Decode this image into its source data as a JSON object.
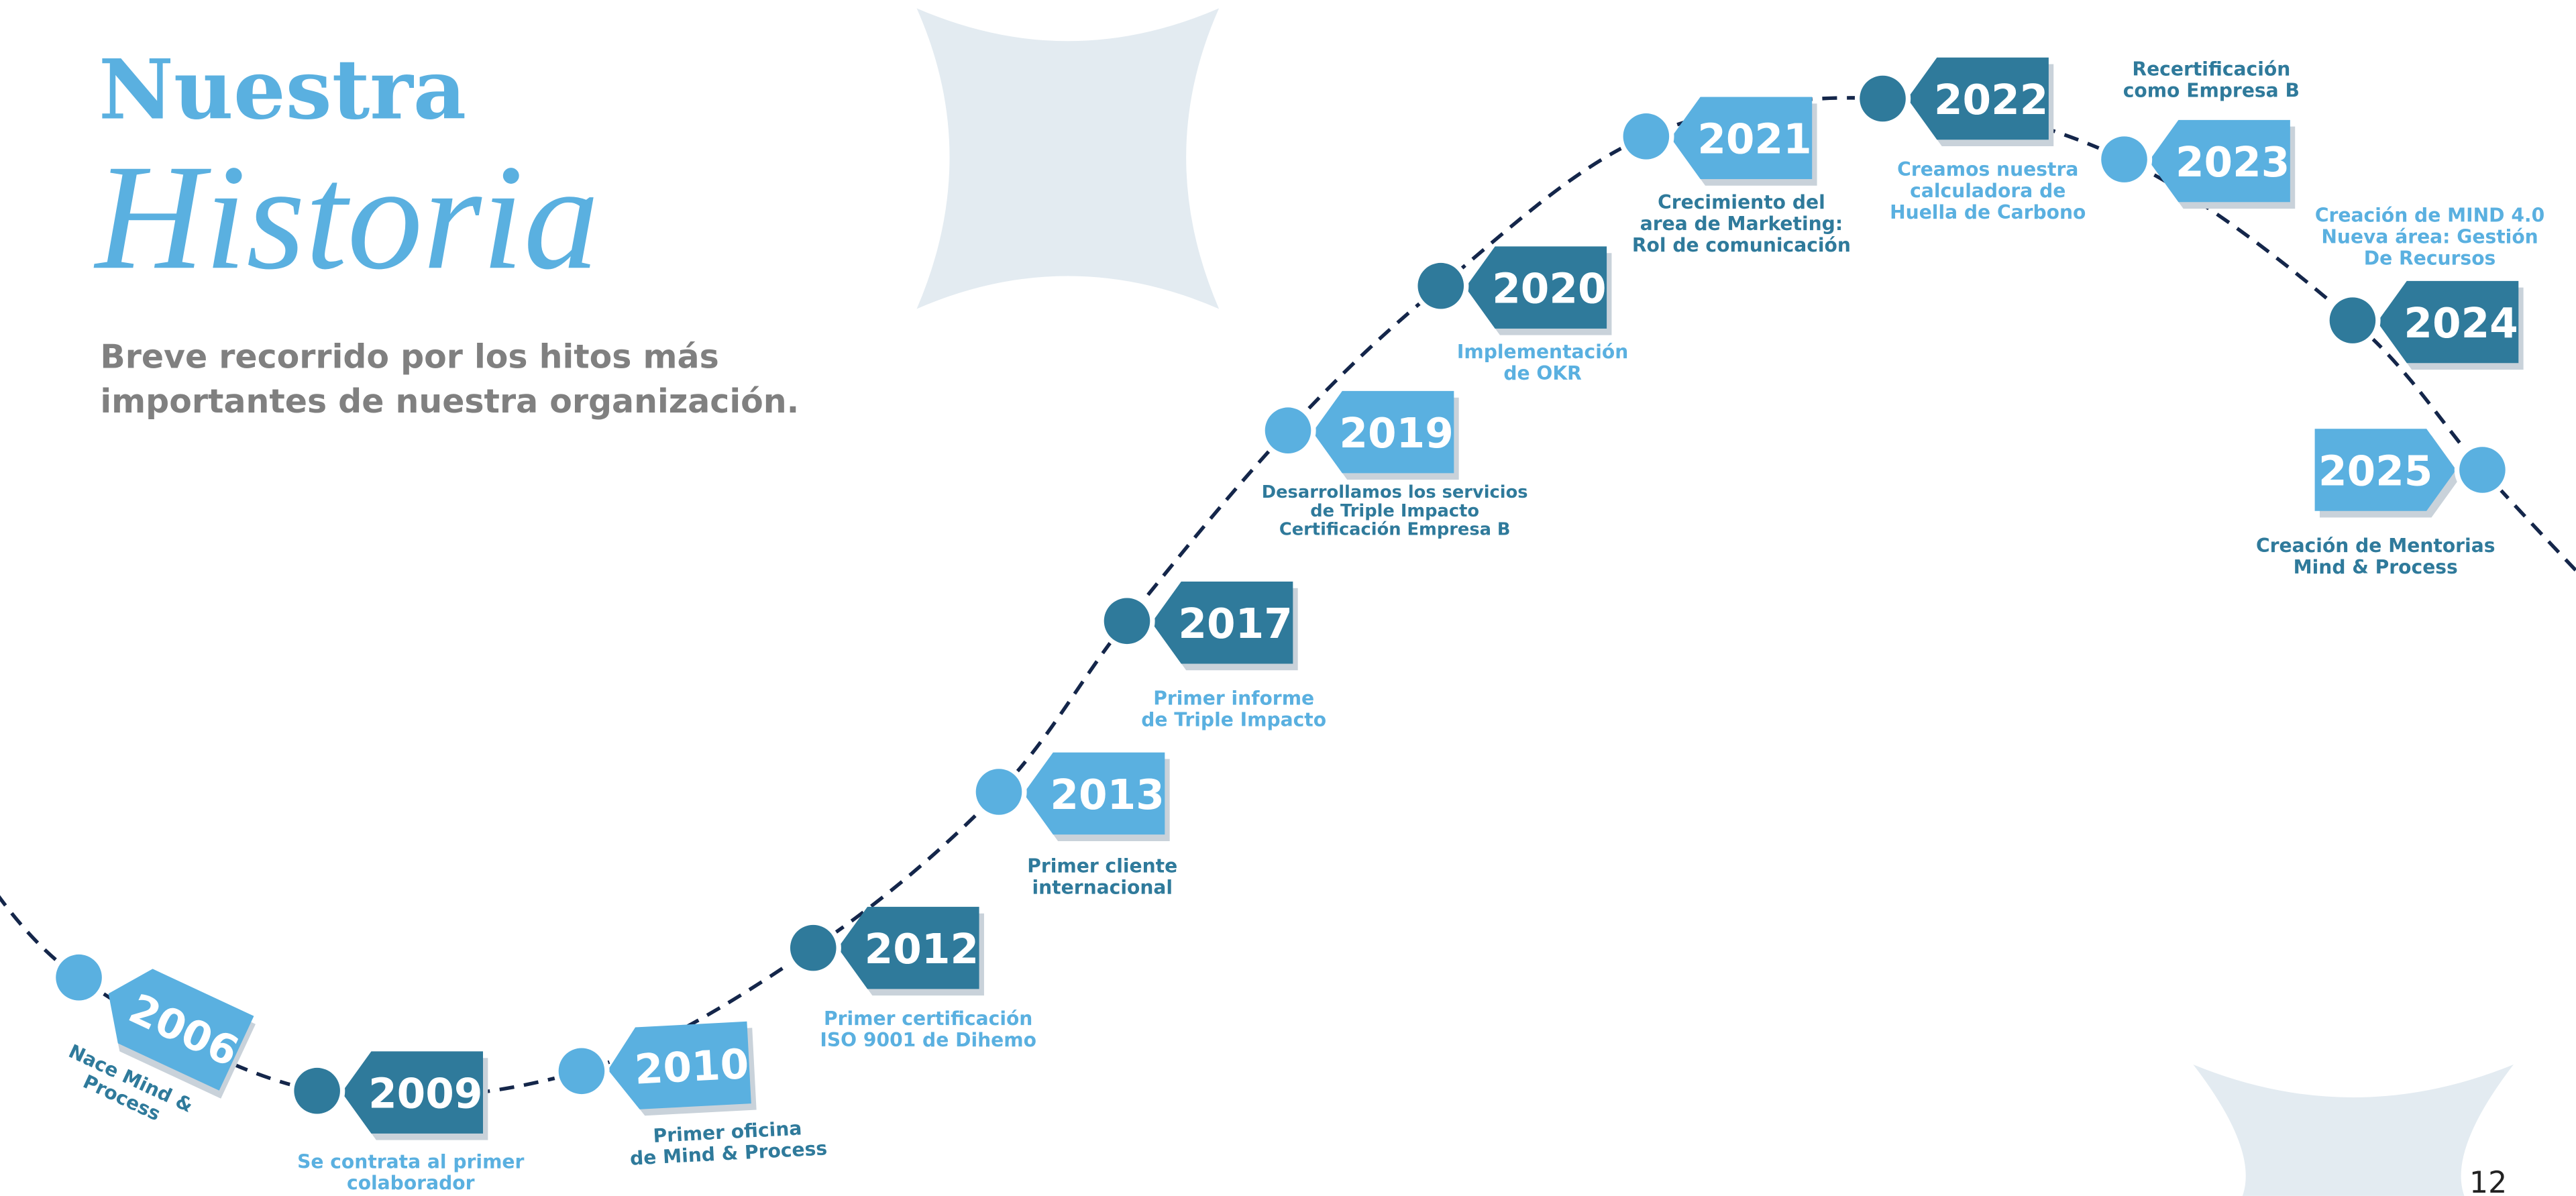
{
  "header": {
    "title_1": "Nuestra",
    "title_2": "Historia",
    "subtitle": [
      "Breve recorrido por los hitos más",
      "importantes de nuestra organización."
    ]
  },
  "milestones": [
    {
      "year": "2006",
      "text": [
        "Nace Mind &",
        "Process"
      ]
    },
    {
      "year": "2009",
      "text": [
        "Se contrata al primer",
        "colaborador"
      ]
    },
    {
      "year": "2010",
      "text": [
        "Primer oficina",
        "de Mind & Process"
      ]
    },
    {
      "year": "2012",
      "text": [
        "Primer certificación",
        "ISO 9001 de Dihemo"
      ]
    },
    {
      "year": "2013",
      "text": [
        "Primer cliente",
        "internacional"
      ]
    },
    {
      "year": "2017",
      "text": [
        "Primer informe",
        "de Triple Impacto"
      ]
    },
    {
      "year": "2019",
      "text": [
        "Desarrollamos los servicios",
        "de Triple Impacto",
        "Certificación Empresa B"
      ]
    },
    {
      "year": "2020",
      "text": [
        "Implementación",
        "de OKR"
      ]
    },
    {
      "year": "2021",
      "text": [
        "Crecimiento del",
        "area de Marketing:",
        "Rol de comunicación"
      ]
    },
    {
      "year": "2022",
      "text": [
        "Creamos nuestra",
        "calculadora de",
        "Huella de Carbono"
      ]
    },
    {
      "year": "2023",
      "text": [
        "Recertificación",
        "como Empresa B"
      ]
    },
    {
      "year": "2024",
      "text": [
        "Creación de MIND 4.0",
        "Nueva área: Gestión",
        "De Recursos"
      ]
    },
    {
      "year": "2025",
      "text": [
        "Creación de Mentorias",
        "Mind & Process"
      ]
    }
  ],
  "page_number": "12"
}
